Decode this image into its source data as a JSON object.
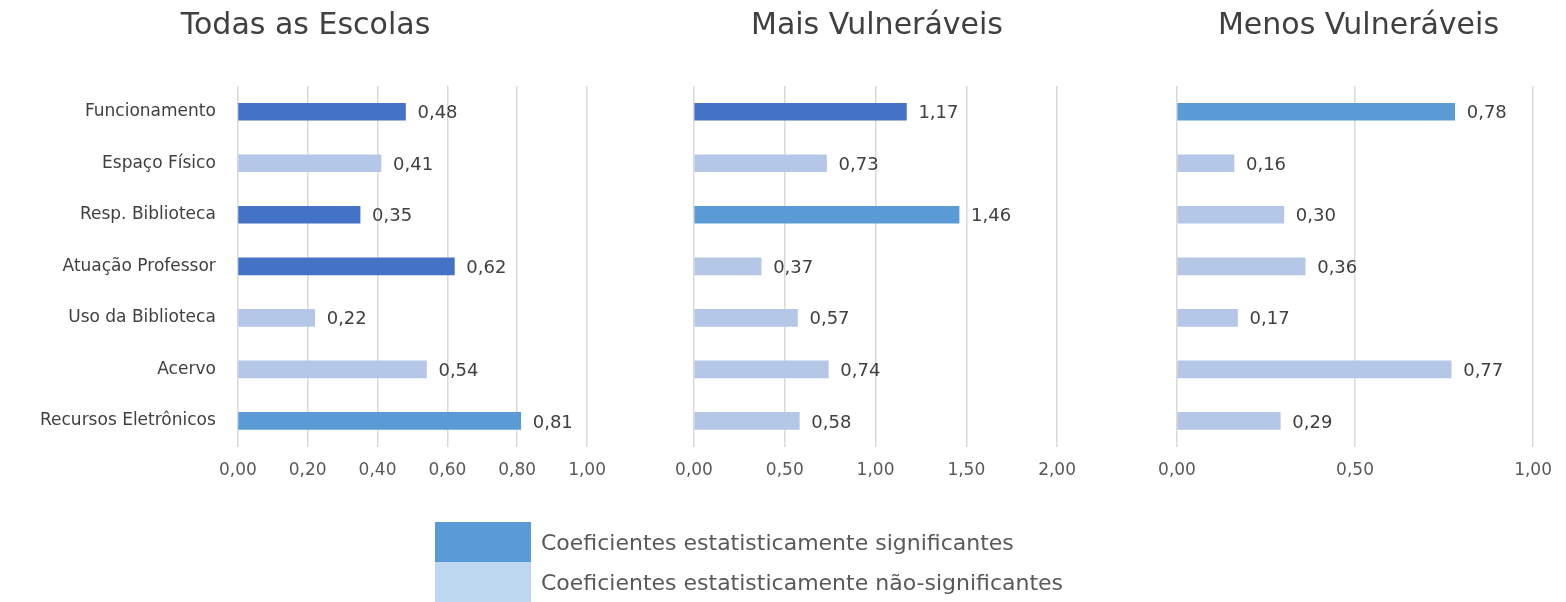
{
  "chart_data": [
    {
      "type": "bar",
      "title": "Todas as Escolas",
      "orientation": "horizontal",
      "legend": "bottom",
      "grid": "x",
      "categories": [
        "Funcionamento",
        "Espaço Físico",
        "Resp. Biblioteca",
        "Atuação Professor",
        "Uso da Biblioteca",
        "Acervo",
        "Recursos Eletrônicos"
      ],
      "xlim": [
        0,
        1
      ],
      "xticks": [
        {
          "value": 0,
          "label": "0,00"
        },
        {
          "value": 0.2,
          "label": "0,20"
        },
        {
          "value": 0.4,
          "label": "0,40"
        },
        {
          "value": 0.6,
          "label": "0,60"
        },
        {
          "value": 0.8,
          "label": "0,80"
        },
        {
          "value": 1,
          "label": "1,00"
        }
      ],
      "series": [
        {
          "name": "Coeficientes estatisticamente significantes",
          "color": "#5b9bd5",
          "colors": [
            "#4472c4",
            null,
            "#4472c4",
            "#4472c4",
            null,
            null,
            "#5b9bd5"
          ],
          "values": [
            0.48,
            null,
            0.35,
            0.62,
            null,
            null,
            0.81
          ],
          "value_labels": [
            "0,48",
            null,
            "0,35",
            "0,62",
            null,
            null,
            "0,81"
          ]
        },
        {
          "name": "Coeficientes estatisticamente não-significantes",
          "color": "#bdd7ee",
          "colors": [
            null,
            "#b4c7e7",
            null,
            null,
            "#b4c7e7",
            "#b4c7e7",
            null
          ],
          "values": [
            null,
            0.41,
            null,
            null,
            0.22,
            0.54,
            null
          ],
          "value_labels": [
            null,
            "0,41",
            null,
            null,
            "0,22",
            "0,54",
            null
          ]
        }
      ]
    },
    {
      "type": "bar",
      "title": "Mais Vulneráveis",
      "orientation": "horizontal",
      "grid": "x",
      "tick_labels": "x",
      "categories": [
        null,
        null,
        null,
        null,
        null,
        null,
        null
      ],
      "xlim": [
        0,
        2
      ],
      "xticks": [
        {
          "value": 0,
          "label": "0,00"
        },
        {
          "value": 0.5,
          "label": "0,50"
        },
        {
          "value": 1,
          "label": "1,00"
        },
        {
          "value": 1.5,
          "label": "1,50"
        },
        {
          "value": 2,
          "label": "2,00"
        }
      ],
      "series": [
        {
          "color": "#5b9bd5",
          "colors": [
            "#4472c4",
            null,
            "#5b9bd5",
            null,
            null,
            null,
            null
          ],
          "values": [
            1.17,
            null,
            1.46,
            null,
            null,
            null,
            null
          ],
          "value_labels": [
            "1,17",
            null,
            "1,46",
            null,
            null,
            null,
            null
          ]
        },
        {
          "color": "#bdd7ee",
          "colors": [
            null,
            "#b4c7e7",
            null,
            "#b4c7e7",
            "#b4c7e7",
            "#b4c7e7",
            "#b4c7e7"
          ],
          "values": [
            null,
            0.73,
            null,
            0.37,
            0.57,
            0.74,
            0.58
          ],
          "value_labels": [
            null,
            "0,73",
            null,
            "0,37",
            "0,57",
            "0,74",
            "0,58"
          ]
        }
      ]
    },
    {
      "type": "bar",
      "title": "Menos Vulneráveis",
      "orientation": "horizontal",
      "grid": "x",
      "tick_labels": "x",
      "categories": [
        null,
        null,
        null,
        null,
        null,
        null,
        null
      ],
      "xlim": [
        0,
        1
      ],
      "xticks": [
        {
          "value": 0,
          "label": "0,00"
        },
        {
          "value": 0.5,
          "label": "0,50"
        },
        {
          "value": 1,
          "label": "1,00"
        }
      ],
      "series": [
        {
          "color": "#5b9bd5",
          "colors": [
            "#5b9bd5",
            null,
            null,
            null,
            null,
            null,
            null
          ],
          "values": [
            0.78,
            null,
            null,
            null,
            null,
            null,
            null
          ],
          "value_labels": [
            "0,78",
            null,
            null,
            null,
            null,
            null,
            null
          ]
        },
        {
          "color": "#bdd7ee",
          "colors": [
            null,
            "#b4c7e7",
            "#b4c7e7",
            "#b4c7e7",
            "#b4c7e7",
            "#b4c7e7",
            "#b4c7e7"
          ],
          "values": [
            null,
            0.16,
            0.3,
            0.36,
            0.17,
            0.77,
            0.29
          ],
          "value_labels": [
            null,
            "0,16",
            "0,30",
            "0,36",
            "0,17",
            "0,77",
            "0,29"
          ]
        }
      ]
    }
  ]
}
